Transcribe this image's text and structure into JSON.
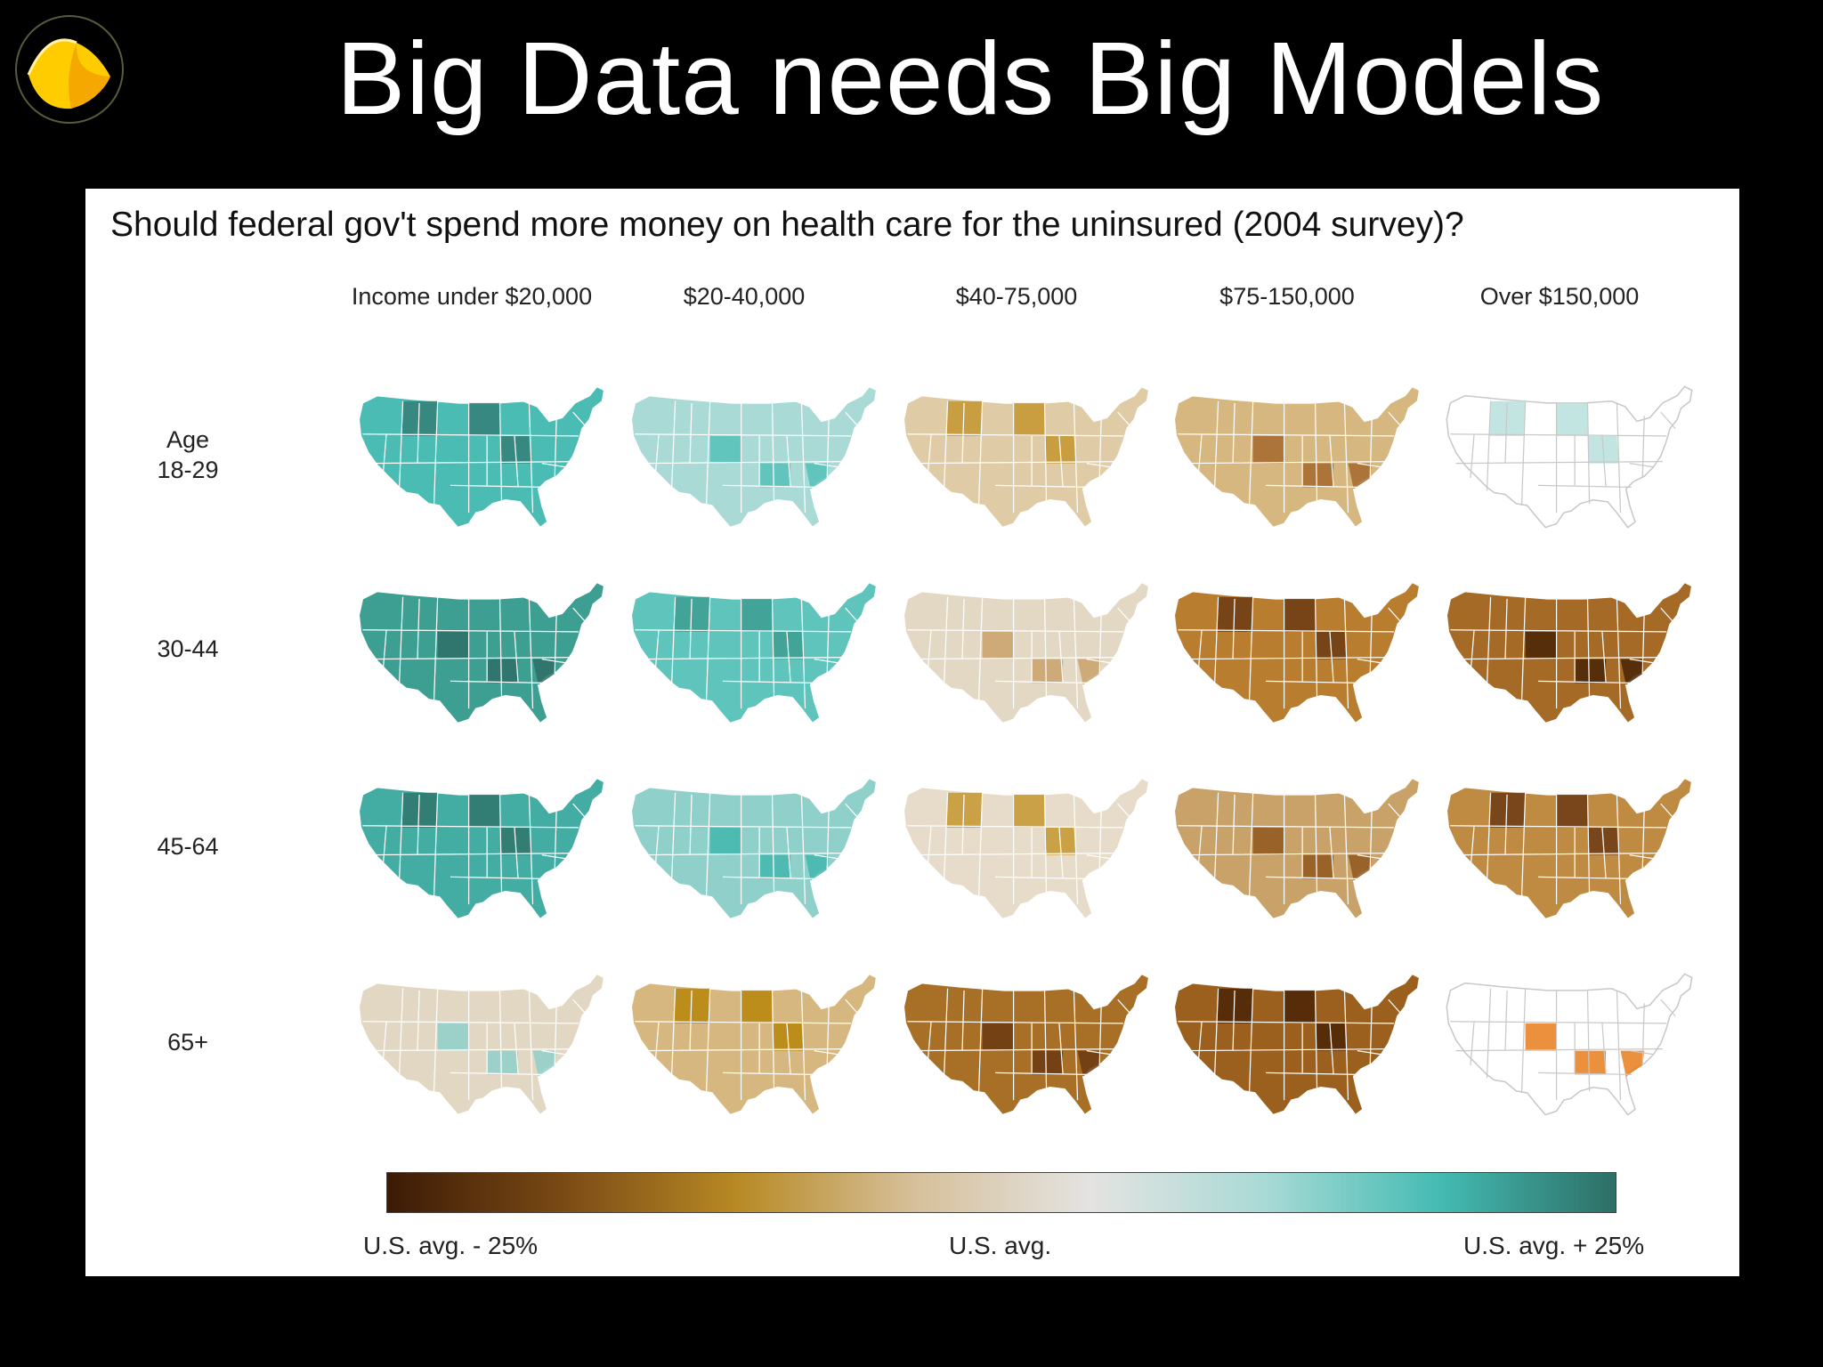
{
  "slide": {
    "title": "Big Data needs Big Models",
    "logo_icon": "yellow-leaf-logo-icon"
  },
  "figure": {
    "title": "Should federal gov't spend more money on health care for the uninsured (2004 survey)?",
    "columns": [
      "Income under $20,000",
      "$20-40,000",
      "$40-75,000",
      "$75-150,000",
      "Over $150,000"
    ],
    "rows": [
      {
        "lines": [
          "Age",
          "18-29"
        ]
      },
      {
        "lines": [
          "30-44"
        ]
      },
      {
        "lines": [
          "45-64"
        ]
      },
      {
        "lines": [
          "65+"
        ]
      }
    ],
    "panel_fill": [
      [
        "#4bbcb3",
        "#a9dad6",
        "#e0cba7",
        "#d6b77f",
        "#ffffff"
      ],
      [
        "#3d9e92",
        "#5fc4bc",
        "#e3d8c4",
        "#b97d2f",
        "#a46a26"
      ],
      [
        "#43ada3",
        "#8fd0ca",
        "#e6dcc9",
        "#c9a26a",
        "#bf8a42"
      ],
      [
        "#e2d7c3",
        "#d6b77f",
        "#a86f27",
        "#9b5f1e",
        "#ffffff"
      ]
    ],
    "panel_accent": [
      [
        "#337f77",
        "#55c1b8",
        "#c4962e",
        "#a5692c",
        "#b9e0dc"
      ],
      [
        "#2e6f67",
        "#3d9e92",
        "#c9a26a",
        "#6b3a13",
        "#4a2306"
      ],
      [
        "#2f756c",
        "#42b7ad",
        "#c4962e",
        "#8f571d",
        "#6b3a13"
      ],
      [
        "#8fd0ca",
        "#b8860b",
        "#6b3a13",
        "#4a2306",
        "#e87c1a"
      ]
    ],
    "colorbar": {
      "stops": [
        "#3b1a05",
        "#7a4a15",
        "#b88a25",
        "#d6c09a",
        "#e4e3e1",
        "#a9dad6",
        "#44bbb3",
        "#2d6f66"
      ],
      "labels": {
        "low": "U.S. avg. - 25%",
        "mid": "U.S. avg.",
        "high": "U.S. avg. + 25%"
      }
    }
  }
}
